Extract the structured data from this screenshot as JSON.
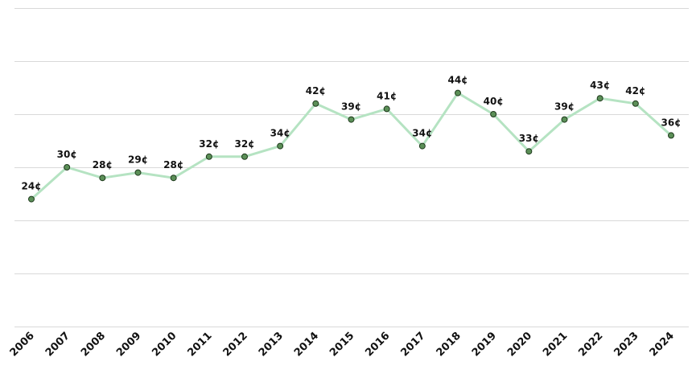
{
  "chart_data": {
    "type": "line",
    "categories": [
      "2006",
      "2007",
      "2008",
      "2009",
      "2010",
      "2011",
      "2012",
      "2013",
      "2014",
      "2015",
      "2016",
      "2017",
      "2018",
      "2019",
      "2020",
      "2021",
      "2022",
      "2023",
      "2024"
    ],
    "series": [
      {
        "values": [
          24,
          30,
          28,
          29,
          28,
          32,
          32,
          34,
          42,
          39,
          41,
          34,
          44,
          40,
          33,
          39,
          43,
          42,
          36
        ],
        "labels": [
          "24¢",
          "30¢",
          "28¢",
          "29¢",
          "28¢",
          "32¢",
          "32¢",
          "34¢",
          "42¢",
          "39¢",
          "41¢",
          "34¢",
          "44¢",
          "40¢",
          "33¢",
          "39¢",
          "43¢",
          "42¢",
          "36¢"
        ]
      }
    ],
    "ylim": [
      0,
      60
    ],
    "grid": true,
    "colors": {
      "line": "#b5e3c2",
      "point_fill": "#5b8f57",
      "point_stroke": "#1f3a1d",
      "grid": "#d9d9d9"
    }
  }
}
